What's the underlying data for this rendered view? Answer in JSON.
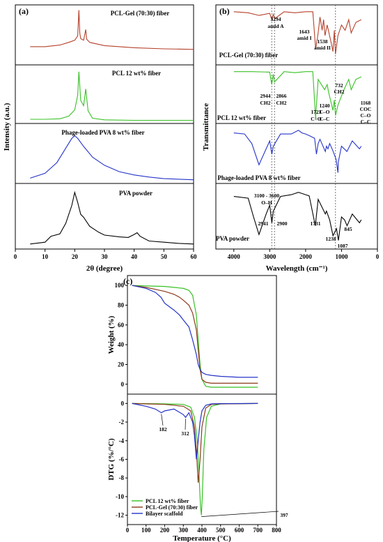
{
  "chart_data": [
    {
      "panel": "(a)",
      "type": "line",
      "xlabel": "2θ (degree)",
      "ylabel": "Intensity (a.u.)",
      "xlim": [
        0,
        60
      ],
      "xticks": [
        0,
        10,
        20,
        30,
        40,
        50,
        60
      ],
      "grid": false,
      "series": [
        {
          "name": "PCL-Gel (70:30) fiber",
          "color": "#b5402a",
          "x": [
            5,
            10,
            15,
            18,
            20,
            21,
            21.4,
            21.7,
            22,
            23,
            23.7,
            24,
            25,
            30,
            40,
            50,
            60
          ],
          "y": [
            0.3,
            0.3,
            0.33,
            0.38,
            0.42,
            0.5,
            0.98,
            0.55,
            0.45,
            0.42,
            0.62,
            0.44,
            0.38,
            0.32,
            0.28,
            0.26,
            0.25
          ]
        },
        {
          "name": "PCL 12 wt% fiber",
          "color": "#39c026",
          "x": [
            5,
            10,
            15,
            18,
            20,
            21,
            21.4,
            22,
            23,
            23.7,
            24.5,
            26,
            30,
            40,
            50,
            60
          ],
          "y": [
            0.04,
            0.04,
            0.05,
            0.1,
            0.22,
            0.5,
            0.95,
            0.4,
            0.3,
            0.62,
            0.2,
            0.06,
            0.03,
            0.02,
            0.02,
            0.02
          ]
        },
        {
          "name": "Phage-loaded PVA 8 wt% fiber",
          "color": "#2533c8",
          "x": [
            5,
            10,
            14,
            17,
            19,
            20,
            21,
            23,
            26,
            30,
            35,
            40,
            45,
            50,
            55,
            60
          ],
          "y": [
            0.06,
            0.15,
            0.35,
            0.62,
            0.8,
            0.85,
            0.8,
            0.65,
            0.45,
            0.3,
            0.18,
            0.12,
            0.08,
            0.05,
            0.04,
            0.03
          ]
        },
        {
          "name": "PVA powder",
          "color": "#000000",
          "x": [
            5,
            10,
            12,
            15,
            17,
            19,
            20,
            21,
            22,
            23,
            25,
            28,
            30,
            35,
            38,
            40,
            41,
            42,
            45,
            50,
            55,
            60
          ],
          "y": [
            0.05,
            0.08,
            0.18,
            0.22,
            0.4,
            0.7,
            0.92,
            0.75,
            0.55,
            0.5,
            0.35,
            0.25,
            0.2,
            0.17,
            0.16,
            0.21,
            0.24,
            0.18,
            0.1,
            0.08,
            0.06,
            0.05
          ]
        }
      ]
    },
    {
      "panel": "(b)",
      "type": "line",
      "xlabel": "Wavelength (cm⁻¹)",
      "ylabel": "Transmittance",
      "xlim": [
        4500,
        0
      ],
      "xticks": [
        4000,
        3000,
        2000,
        1000,
        0
      ],
      "grid": false,
      "series": [
        {
          "name": "PCL-Gel (70:30) fiber",
          "color": "#b5402a",
          "x": [
            4000,
            3600,
            3300,
            3000,
            2940,
            2900,
            2860,
            2600,
            2300,
            2000,
            1800,
            1720,
            1650,
            1600,
            1540,
            1500,
            1460,
            1400,
            1300,
            1240,
            1200,
            1170,
            1100,
            1000,
            900,
            800,
            732,
            600,
            450
          ],
          "y": [
            0.95,
            0.93,
            0.88,
            0.92,
            0.8,
            0.9,
            0.82,
            0.95,
            0.93,
            0.95,
            0.95,
            0.25,
            0.55,
            0.85,
            0.6,
            0.8,
            0.5,
            0.7,
            0.4,
            0.2,
            0.6,
            0.15,
            0.5,
            0.7,
            0.6,
            0.8,
            0.55,
            0.75,
            0.8
          ]
        },
        {
          "name": "PCL 12 wt% fiber",
          "color": "#39c026",
          "x": [
            4000,
            3500,
            3000,
            2944,
            2900,
            2866,
            2600,
            2300,
            2000,
            1800,
            1723,
            1650,
            1470,
            1400,
            1360,
            1240,
            1200,
            1168,
            1100,
            1045,
            960,
            900,
            800,
            732,
            600,
            450
          ],
          "y": [
            0.95,
            0.95,
            0.94,
            0.7,
            0.9,
            0.75,
            0.95,
            0.93,
            0.95,
            0.95,
            0.05,
            0.8,
            0.6,
            0.7,
            0.55,
            0.2,
            0.4,
            0.1,
            0.3,
            0.4,
            0.55,
            0.65,
            0.8,
            0.6,
            0.8,
            0.85
          ]
        },
        {
          "name": "Phage-loaded PVA 8 wt% fiber",
          "color": "#2533c8",
          "x": [
            4000,
            3700,
            3500,
            3300,
            3100,
            3000,
            2940,
            2900,
            2700,
            2400,
            2200,
            2100,
            2000,
            1900,
            1750,
            1700,
            1650,
            1600,
            1450,
            1420,
            1380,
            1330,
            1250,
            1150,
            1100,
            1090,
            1000,
            850,
            700,
            500,
            450
          ],
          "y": [
            0.9,
            0.88,
            0.7,
            0.3,
            0.6,
            0.75,
            0.5,
            0.65,
            0.88,
            0.88,
            0.95,
            0.9,
            0.88,
            0.85,
            0.8,
            0.5,
            0.7,
            0.78,
            0.55,
            0.65,
            0.6,
            0.7,
            0.58,
            0.4,
            0.15,
            0.35,
            0.65,
            0.55,
            0.75,
            0.6,
            0.65
          ]
        },
        {
          "name": "PVA powder",
          "color": "#000000",
          "x": [
            4000,
            3600,
            3450,
            3300,
            3100,
            3000,
            2941,
            2900,
            2700,
            2400,
            2200,
            2100,
            2000,
            1900,
            1731,
            1650,
            1450,
            1420,
            1330,
            1238,
            1140,
            1087,
            1000,
            916,
            845,
            700,
            500,
            450
          ],
          "y": [
            0.85,
            0.82,
            0.5,
            0.2,
            0.55,
            0.7,
            0.4,
            0.6,
            0.85,
            0.88,
            0.92,
            0.9,
            0.88,
            0.86,
            0.35,
            0.8,
            0.55,
            0.6,
            0.45,
            0.18,
            0.3,
            0.1,
            0.5,
            0.45,
            0.35,
            0.55,
            0.4,
            0.45
          ]
        }
      ],
      "annotations": [
        "3294",
        "amid A",
        "1643",
        "amid I",
        "1538",
        "amid II",
        "2944",
        "CH2",
        "2866",
        "CH2",
        "1723",
        "C=O",
        "1240",
        "C–O",
        "C–C",
        "1168",
        "COC",
        "C–O",
        "C–C",
        "732",
        "CH2",
        "3100 - 3600",
        "O–H",
        "2941",
        "2900",
        "1731",
        "1238",
        "845",
        "1087"
      ]
    },
    {
      "panel": "(c)",
      "type": "line",
      "xlabel": "Temperature (°C)",
      "ylabel_top": "Weight (%)",
      "ylabel_bottom": "DTG (%/°C)",
      "xlim": [
        0,
        800
      ],
      "xticks": [
        0,
        100,
        200,
        300,
        400,
        500,
        600,
        700,
        800
      ],
      "ylim_top": [
        -10,
        110
      ],
      "yticks_top": [
        0,
        20,
        40,
        60,
        80,
        100
      ],
      "ylim_bottom": [
        -13,
        1
      ],
      "yticks_bottom": [
        0,
        -2,
        -4,
        -6,
        -8,
        -10,
        -12
      ],
      "legend": "bottom-left",
      "series_weight": [
        {
          "name": "PCL 12 wt% fiber",
          "color": "#39c026",
          "x": [
            25,
            100,
            200,
            300,
            330,
            350,
            370,
            380,
            390,
            400,
            420,
            450,
            500,
            600,
            700
          ],
          "y": [
            100,
            99.5,
            99,
            97,
            95,
            90,
            70,
            45,
            20,
            5,
            -2,
            -3,
            -3,
            -3,
            -3
          ]
        },
        {
          "name": "PCL-Gel (70:30) fiber",
          "color": "#8b3a1a",
          "x": [
            25,
            100,
            150,
            200,
            250,
            280,
            300,
            330,
            350,
            370,
            380,
            390,
            400,
            420,
            450,
            500,
            600,
            700
          ],
          "y": [
            100,
            98,
            96,
            94,
            91,
            88,
            85,
            80,
            72,
            55,
            35,
            15,
            5,
            2,
            1,
            1,
            1,
            1
          ]
        },
        {
          "name": "Bilayer scaffold",
          "color": "#2533c8",
          "x": [
            25,
            100,
            150,
            180,
            200,
            250,
            280,
            300,
            330,
            350,
            370,
            380,
            390,
            400,
            420,
            450,
            500,
            600,
            700
          ],
          "y": [
            100,
            97,
            93,
            88,
            82,
            75,
            70,
            65,
            58,
            45,
            30,
            20,
            15,
            12,
            10,
            9,
            8,
            7,
            7
          ]
        }
      ],
      "series_dtg": [
        {
          "name": "PCL 12 wt% fiber",
          "color": "#39c026",
          "x": [
            25,
            200,
            300,
            340,
            360,
            375,
            385,
            392,
            397,
            402,
            410,
            425,
            450,
            500,
            700
          ],
          "y": [
            0,
            -0.05,
            -0.1,
            -0.4,
            -1.5,
            -4,
            -8,
            -11,
            -12,
            -10,
            -5,
            -1.5,
            -0.3,
            -0.05,
            0
          ]
        },
        {
          "name": "PCL-Gel (70:30) fiber",
          "color": "#8b3a1a",
          "x": [
            25,
            100,
            200,
            300,
            340,
            360,
            370,
            380,
            390,
            400,
            420,
            450,
            500,
            700
          ],
          "y": [
            0,
            -0.05,
            -0.1,
            -0.3,
            -0.8,
            -2.5,
            -5,
            -8.5,
            -6,
            -2.5,
            -0.5,
            -0.1,
            -0.05,
            0
          ]
        },
        {
          "name": "Bilayer scaffold",
          "color": "#2533c8",
          "x": [
            25,
            100,
            150,
            182,
            200,
            250,
            300,
            312,
            330,
            350,
            360,
            370,
            380,
            390,
            400,
            420,
            450,
            500,
            700
          ],
          "y": [
            0,
            -0.3,
            -0.6,
            -1.0,
            -0.8,
            -0.6,
            -1.2,
            -1.5,
            -1.0,
            -2,
            -3.5,
            -6,
            -4,
            -2,
            -0.8,
            -0.2,
            -0.05,
            -0.02,
            0
          ]
        }
      ],
      "annotations": [
        "182",
        "312",
        "397"
      ]
    }
  ]
}
